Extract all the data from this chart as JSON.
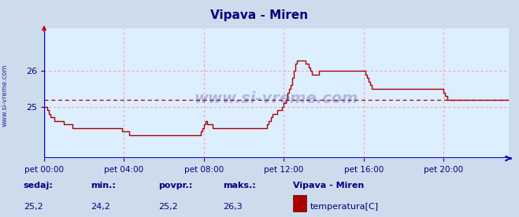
{
  "title": "Vipava - Miren",
  "title_color": "#000080",
  "bg_color": "#ccdcec",
  "plot_bg_color": "#ddeeff",
  "line_color": "#aa0000",
  "grid_color": "#ff9999",
  "axis_color": "#0000cc",
  "tick_color": "#000080",
  "watermark": "www.si-vreme.com",
  "watermark_color": "#000080",
  "ylabel_text": "www.si-vreme.com",
  "xlabels": [
    "pet 00:00",
    "pet 04:00",
    "pet 08:00",
    "pet 12:00",
    "pet 16:00",
    "pet 20:00"
  ],
  "xtick_indices": [
    0,
    48,
    96,
    144,
    192,
    240
  ],
  "ylim": [
    23.55,
    27.2
  ],
  "yticks": [
    25,
    26
  ],
  "avg_line": 25.2,
  "footer_labels": [
    "sedaj:",
    "min.:",
    "povpr.:",
    "maks.:"
  ],
  "footer_values": [
    "25,2",
    "24,2",
    "25,2",
    "26,3"
  ],
  "footer_series_name": "Vipava - Miren",
  "footer_series_label": "temperatura[C]",
  "footer_color": "#000080",
  "legend_rect_color": "#aa0000",
  "temp_data": [
    25.0,
    25.0,
    24.9,
    24.8,
    24.7,
    24.7,
    24.6,
    24.6,
    24.6,
    24.6,
    24.6,
    24.6,
    24.5,
    24.5,
    24.5,
    24.5,
    24.5,
    24.4,
    24.4,
    24.4,
    24.4,
    24.4,
    24.4,
    24.4,
    24.4,
    24.4,
    24.4,
    24.4,
    24.4,
    24.4,
    24.4,
    24.4,
    24.4,
    24.4,
    24.4,
    24.4,
    24.4,
    24.4,
    24.4,
    24.4,
    24.4,
    24.4,
    24.4,
    24.4,
    24.4,
    24.4,
    24.4,
    24.3,
    24.3,
    24.3,
    24.3,
    24.2,
    24.2,
    24.2,
    24.2,
    24.2,
    24.2,
    24.2,
    24.2,
    24.2,
    24.2,
    24.2,
    24.2,
    24.2,
    24.2,
    24.2,
    24.2,
    24.2,
    24.2,
    24.2,
    24.2,
    24.2,
    24.2,
    24.2,
    24.2,
    24.2,
    24.2,
    24.2,
    24.2,
    24.2,
    24.2,
    24.2,
    24.2,
    24.2,
    24.2,
    24.2,
    24.2,
    24.2,
    24.2,
    24.2,
    24.2,
    24.2,
    24.2,
    24.2,
    24.3,
    24.4,
    24.5,
    24.6,
    24.5,
    24.5,
    24.5,
    24.4,
    24.4,
    24.4,
    24.4,
    24.4,
    24.4,
    24.4,
    24.4,
    24.4,
    24.4,
    24.4,
    24.4,
    24.4,
    24.4,
    24.4,
    24.4,
    24.4,
    24.4,
    24.4,
    24.4,
    24.4,
    24.4,
    24.4,
    24.4,
    24.4,
    24.4,
    24.4,
    24.4,
    24.4,
    24.4,
    24.4,
    24.4,
    24.4,
    24.5,
    24.6,
    24.7,
    24.8,
    24.8,
    24.8,
    24.9,
    24.9,
    24.9,
    25.0,
    25.1,
    25.2,
    25.4,
    25.5,
    25.6,
    25.8,
    26.0,
    26.2,
    26.3,
    26.3,
    26.3,
    26.3,
    26.3,
    26.2,
    26.2,
    26.1,
    26.0,
    25.9,
    25.9,
    25.9,
    25.9,
    26.0,
    26.0,
    26.0,
    26.0,
    26.0,
    26.0,
    26.0,
    26.0,
    26.0,
    26.0,
    26.0,
    26.0,
    26.0,
    26.0,
    26.0,
    26.0,
    26.0,
    26.0,
    26.0,
    26.0,
    26.0,
    26.0,
    26.0,
    26.0,
    26.0,
    26.0,
    26.0,
    26.0,
    25.9,
    25.8,
    25.7,
    25.6,
    25.5,
    25.5,
    25.5,
    25.5,
    25.5,
    25.5,
    25.5,
    25.5,
    25.5,
    25.5,
    25.5,
    25.5,
    25.5,
    25.5,
    25.5,
    25.5,
    25.5,
    25.5,
    25.5,
    25.5,
    25.5,
    25.5,
    25.5,
    25.5,
    25.5,
    25.5,
    25.5,
    25.5,
    25.5,
    25.5,
    25.5,
    25.5,
    25.5,
    25.5,
    25.5,
    25.5,
    25.5,
    25.5,
    25.5,
    25.5,
    25.5,
    25.5,
    25.5,
    25.4,
    25.3,
    25.2,
    25.2,
    25.2,
    25.2,
    25.2,
    25.2,
    25.2,
    25.2,
    25.2,
    25.2,
    25.2,
    25.2,
    25.2,
    25.2,
    25.2,
    25.2,
    25.2,
    25.2,
    25.2,
    25.2,
    25.2,
    25.2,
    25.2,
    25.2,
    25.2,
    25.2,
    25.2,
    25.2,
    25.2,
    25.2,
    25.2,
    25.2,
    25.2,
    25.2,
    25.2,
    25.2,
    25.2,
    25.2
  ]
}
